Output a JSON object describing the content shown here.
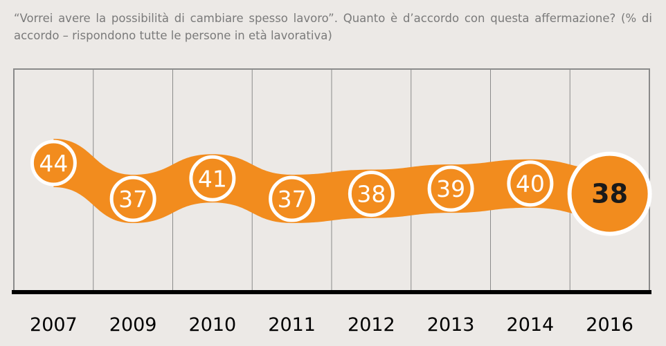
{
  "title": "“Vorrei avere la possibilità di cambiare spesso lavoro”. Quanto è d’accordo con questa affermazione? (% di accordo – rispondono tutte le persone in età lavorativa)",
  "colors": {
    "band": "#f28c1e",
    "circle_fill": "#f28c1e",
    "circle_stroke": "#ffffff",
    "frame": "#8a8a8a",
    "baseline": "#000000",
    "text": "#000000"
  },
  "chart_data": {
    "type": "line",
    "title": "“Vorrei avere la possibilità di cambiare spesso lavoro”. Quanto è d’accordo con questa affermazione? (% di accordo – rispondono tutte le persone in età lavorativa)",
    "xlabel": "",
    "ylabel": "",
    "categories": [
      "2007",
      "2009",
      "2010",
      "2011",
      "2012",
      "2013",
      "2014",
      "2016"
    ],
    "series": [
      {
        "values": [
          44,
          37,
          41,
          37,
          38,
          39,
          40,
          38
        ]
      }
    ],
    "highlight_last": true,
    "grid": "vertical separators",
    "legend": "none"
  }
}
